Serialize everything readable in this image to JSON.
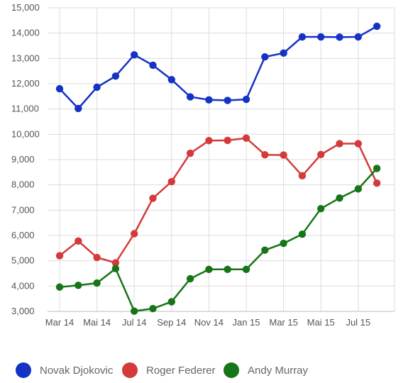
{
  "chart_data": {
    "type": "line",
    "title": "",
    "xlabel": "",
    "ylabel": "",
    "ylim": [
      3000,
      15000
    ],
    "y_ticks": [
      "3,000",
      "4,000",
      "5,000",
      "6,000",
      "7,000",
      "8,000",
      "9,000",
      "10,000",
      "11,000",
      "12,000",
      "13,000",
      "14,000",
      "15,000"
    ],
    "y_tick_values": [
      3000,
      4000,
      5000,
      6000,
      7000,
      8000,
      9000,
      10000,
      11000,
      12000,
      13000,
      14000,
      15000
    ],
    "x_tick_labels": [
      "Mar 14",
      "Mai 14",
      "Jul 14",
      "Sep 14",
      "Nov 14",
      "Jan 15",
      "Mar 15",
      "Mai 15",
      "Jul 15"
    ],
    "x": [
      "Mar 14",
      "Apr 14",
      "Mai 14",
      "Jun 14",
      "Jul 14",
      "Aug 14",
      "Sep 14",
      "Okt 14",
      "Nov 14",
      "Dez 14",
      "Jan 15",
      "Feb 15",
      "Mar 15",
      "Apr 15",
      "Mai 15",
      "Jun 15",
      "Jul 15",
      "Aug 15"
    ],
    "grid": true,
    "legend_position": "bottom",
    "series": [
      {
        "name": "Novak Djokovic",
        "color": "#1433c4",
        "values": [
          11800,
          11020,
          11860,
          12300,
          13140,
          12730,
          12160,
          11480,
          11360,
          11340,
          11380,
          13060,
          13210,
          13850,
          13850,
          13840,
          13850,
          14270
        ],
        "x_start": 0
      },
      {
        "name": "Roger Federer",
        "color": "#d43a3a",
        "values": [
          5200,
          5780,
          5130,
          4920,
          6070,
          7470,
          8130,
          9250,
          9750,
          9760,
          9850,
          9190,
          9180,
          8360,
          9200,
          9630,
          9630,
          8070
        ],
        "x_start": 0
      },
      {
        "name": "Andy Murray",
        "color": "#167516",
        "values": [
          3960,
          4030,
          4120,
          4690,
          3010,
          3110,
          3380,
          4290,
          4660,
          4660,
          4660,
          5420,
          5690,
          6050,
          7060,
          7480,
          7840,
          8650
        ],
        "x_start": 0
      }
    ]
  }
}
